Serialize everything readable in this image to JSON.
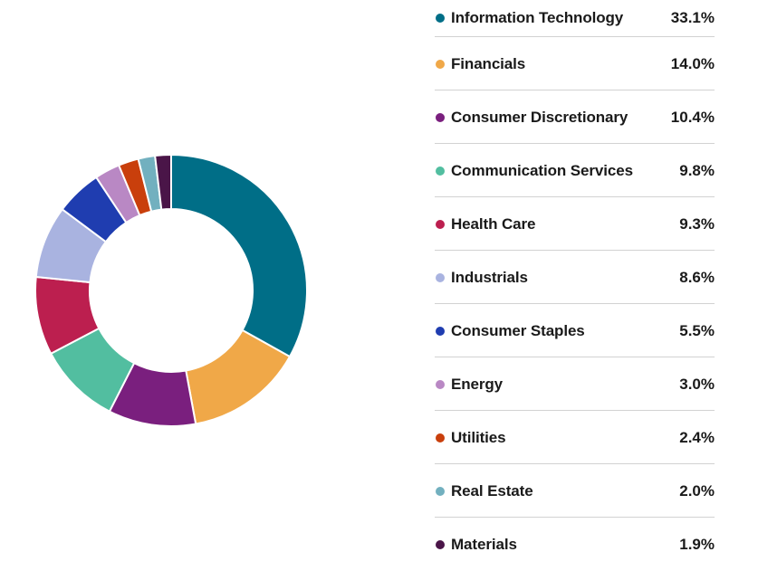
{
  "chart_data": {
    "type": "pie",
    "categories": [
      "Information Technology",
      "Financials",
      "Consumer Discretionary",
      "Communication Services",
      "Health Care",
      "Industrials",
      "Consumer Staples",
      "Energy",
      "Utilities",
      "Real Estate",
      "Materials"
    ],
    "values": [
      33.1,
      14.0,
      10.4,
      9.8,
      9.3,
      8.6,
      5.5,
      3.0,
      2.4,
      2.0,
      1.9
    ],
    "value_labels": [
      "33.1%",
      "14.0%",
      "10.4%",
      "9.8%",
      "9.3%",
      "8.6%",
      "5.5%",
      "3.0%",
      "2.4%",
      "2.0%",
      "1.9%"
    ],
    "colors": [
      "#006e87",
      "#f0a848",
      "#7a1f7e",
      "#52bea0",
      "#bc1f4f",
      "#a9b3e0",
      "#1f3db0",
      "#b988c4",
      "#c93f0c",
      "#72b0bf",
      "#4a1548"
    ],
    "style": "donut",
    "unit": "%",
    "legend_position": "right"
  }
}
